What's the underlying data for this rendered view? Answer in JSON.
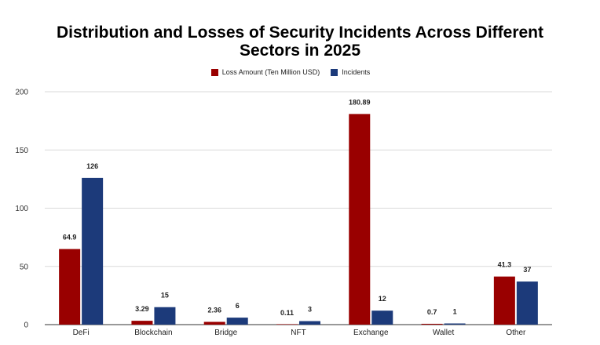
{
  "chart_data": {
    "type": "bar",
    "title_lines": [
      "Distribution and Losses of Security Incidents Across Different",
      "Sectors in 2025"
    ],
    "xlabel": "",
    "ylabel": "",
    "categories": [
      "DeFi",
      "Blockchain",
      "Bridge",
      "NFT",
      "Exchange",
      "Wallet",
      "Other"
    ],
    "series": [
      {
        "name": "Loss Amount (Ten Million USD)",
        "color": "#990000",
        "values": [
          64.9,
          3.29,
          2.36,
          0.11,
          180.89,
          0.7,
          41.3
        ],
        "labels": [
          "64.9",
          "3.29",
          "2.36",
          "0.11",
          "180.89",
          "0.7",
          "41.3"
        ]
      },
      {
        "name": "Incidents",
        "color": "#1c3a7a",
        "values": [
          126,
          15,
          6,
          3,
          12,
          1,
          37
        ],
        "labels": [
          "126",
          "15",
          "6",
          "3",
          "12",
          "1",
          "37"
        ]
      }
    ],
    "ylim": [
      0,
      200
    ],
    "yticks": [
      0,
      50,
      100,
      150,
      200
    ],
    "grid": true,
    "legend_position": "top-center"
  }
}
